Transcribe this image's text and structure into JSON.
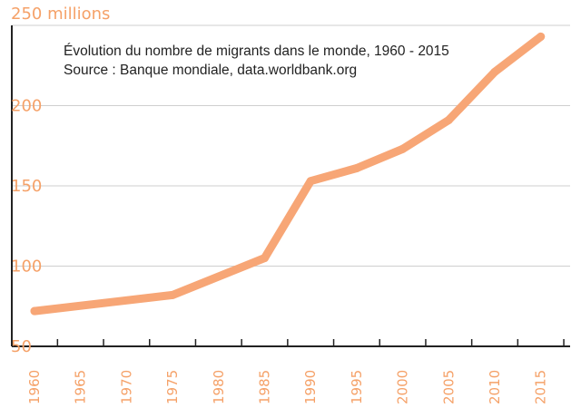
{
  "chart_data": {
    "type": "line",
    "title": "",
    "annotations": [
      "Évolution du nombre de migrants dans le monde, 1960 - 2015",
      "Source : Banque mondiale, data.worldbank.org"
    ],
    "xlabel": "",
    "ylabel": "",
    "y_top_label": "250 millions",
    "x": [
      1960,
      1965,
      1970,
      1975,
      1980,
      1985,
      1990,
      1995,
      2000,
      2005,
      2010,
      2015
    ],
    "x_tick_labels": [
      "1960",
      "1965",
      "1970",
      "1975",
      "1980",
      "1985",
      "1990",
      "1995",
      "2000",
      "2005",
      "2010",
      "2015"
    ],
    "y_ticks": [
      50,
      100,
      150,
      200,
      250
    ],
    "y_tick_labels": [
      "50",
      "100",
      "150",
      "200"
    ],
    "ylim": [
      50,
      250
    ],
    "grid": true,
    "legend": "none",
    "series": [
      {
        "points": [
          [
            1960,
            72
          ],
          [
            1975,
            82
          ],
          [
            1985,
            105
          ],
          [
            1990,
            153
          ],
          [
            1995,
            161
          ],
          [
            2000,
            173
          ],
          [
            2005,
            191
          ],
          [
            2010,
            221
          ],
          [
            2015,
            243
          ]
        ]
      }
    ],
    "colors": {
      "line": "#f7a676",
      "text": "#f5a168",
      "grid": "#cfcfcf",
      "axis": "#222222"
    }
  }
}
